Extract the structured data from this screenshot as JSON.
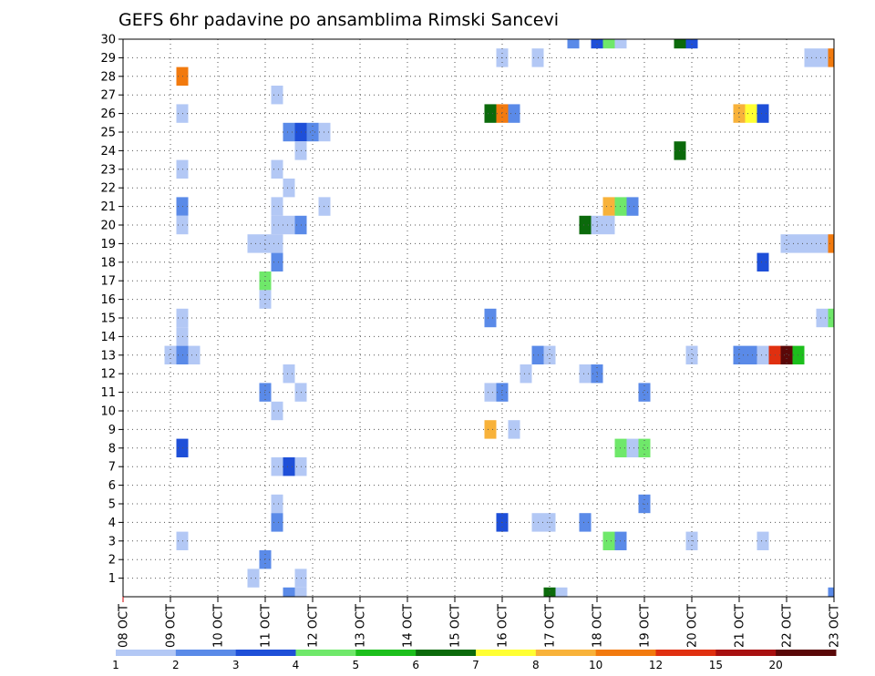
{
  "chart_data": {
    "type": "heatmap",
    "title": "GEFS 6hr padavine po ansamblima Rimski Sancevi",
    "y_ticks": [
      "1",
      "2",
      "3",
      "4",
      "5",
      "6",
      "7",
      "8",
      "9",
      "10",
      "11",
      "12",
      "13",
      "14",
      "15",
      "16",
      "17",
      "18",
      "19",
      "20",
      "21",
      "22",
      "23",
      "24",
      "25",
      "26",
      "27",
      "28",
      "29",
      "30"
    ],
    "x_ticks": [
      "08 OCT",
      "09 OCT",
      "10 OCT",
      "11 OCT",
      "12 OCT",
      "13 OCT",
      "14 OCT",
      "15 OCT",
      "16 OCT",
      "17 OCT",
      "18 OCT",
      "19 OCT",
      "20 OCT",
      "21 OCT",
      "22 OCT",
      "23 OCT"
    ],
    "xlim_days": [
      8,
      23
    ],
    "ylim": [
      0,
      30
    ],
    "cell_hours": 6,
    "grid": true,
    "legend_placement": "bottom",
    "colorbar": {
      "labels": [
        "1",
        "2",
        "3",
        "4",
        "5",
        "6",
        "7",
        "8",
        "10",
        "12",
        "15",
        "20"
      ],
      "colors": [
        "#b3c8f5",
        "#5a8ae8",
        "#1e4fd8",
        "#6fe86a",
        "#1cbf1c",
        "#0b6a0b",
        "#ffff33",
        "#f8b23a",
        "#f27a0e",
        "#e03010",
        "#a81010",
        "#5a0808"
      ]
    },
    "cells": [
      {
        "member": 30,
        "day": 17,
        "hour": 12,
        "level": 2
      },
      {
        "member": 30,
        "day": 18,
        "hour": 0,
        "level": 3
      },
      {
        "member": 30,
        "day": 18,
        "hour": 6,
        "level": 4
      },
      {
        "member": 30,
        "day": 18,
        "hour": 12,
        "level": 1
      },
      {
        "member": 30,
        "day": 19,
        "hour": 18,
        "level": 6
      },
      {
        "member": 30,
        "day": 20,
        "hour": 0,
        "level": 3
      },
      {
        "member": 29,
        "day": 16,
        "hour": 0,
        "level": 1
      },
      {
        "member": 29,
        "day": 16,
        "hour": 18,
        "level": 1
      },
      {
        "member": 29,
        "day": 22,
        "hour": 12,
        "level": 1
      },
      {
        "member": 29,
        "day": 22,
        "hour": 18,
        "level": 1
      },
      {
        "member": 29,
        "day": 23,
        "hour": 0,
        "level": 9
      },
      {
        "member": 28,
        "day": 9,
        "hour": 6,
        "level": 9
      },
      {
        "member": 27,
        "day": 11,
        "hour": 6,
        "level": 1
      },
      {
        "member": 26,
        "day": 9,
        "hour": 6,
        "level": 1
      },
      {
        "member": 26,
        "day": 15,
        "hour": 18,
        "level": 6
      },
      {
        "member": 26,
        "day": 16,
        "hour": 0,
        "level": 9
      },
      {
        "member": 26,
        "day": 16,
        "hour": 6,
        "level": 2
      },
      {
        "member": 26,
        "day": 21,
        "hour": 0,
        "level": 8
      },
      {
        "member": 26,
        "day": 21,
        "hour": 6,
        "level": 7
      },
      {
        "member": 26,
        "day": 21,
        "hour": 12,
        "level": 3
      },
      {
        "member": 25,
        "day": 11,
        "hour": 12,
        "level": 2
      },
      {
        "member": 25,
        "day": 11,
        "hour": 18,
        "level": 3
      },
      {
        "member": 25,
        "day": 12,
        "hour": 0,
        "level": 2
      },
      {
        "member": 25,
        "day": 12,
        "hour": 6,
        "level": 1
      },
      {
        "member": 24,
        "day": 11,
        "hour": 18,
        "level": 1
      },
      {
        "member": 24,
        "day": 19,
        "hour": 18,
        "level": 6
      },
      {
        "member": 23,
        "day": 9,
        "hour": 6,
        "level": 1
      },
      {
        "member": 23,
        "day": 11,
        "hour": 6,
        "level": 1
      },
      {
        "member": 22,
        "day": 11,
        "hour": 12,
        "level": 1
      },
      {
        "member": 21,
        "day": 9,
        "hour": 6,
        "level": 2
      },
      {
        "member": 21,
        "day": 11,
        "hour": 6,
        "level": 1
      },
      {
        "member": 21,
        "day": 12,
        "hour": 6,
        "level": 1
      },
      {
        "member": 21,
        "day": 18,
        "hour": 6,
        "level": 8
      },
      {
        "member": 21,
        "day": 18,
        "hour": 12,
        "level": 4
      },
      {
        "member": 21,
        "day": 18,
        "hour": 18,
        "level": 2
      },
      {
        "member": 20,
        "day": 9,
        "hour": 6,
        "level": 1
      },
      {
        "member": 20,
        "day": 11,
        "hour": 6,
        "level": 1
      },
      {
        "member": 20,
        "day": 11,
        "hour": 12,
        "level": 1
      },
      {
        "member": 20,
        "day": 11,
        "hour": 18,
        "level": 2
      },
      {
        "member": 20,
        "day": 17,
        "hour": 18,
        "level": 6
      },
      {
        "member": 20,
        "day": 18,
        "hour": 0,
        "level": 1
      },
      {
        "member": 20,
        "day": 18,
        "hour": 6,
        "level": 1
      },
      {
        "member": 19,
        "day": 10,
        "hour": 18,
        "level": 1
      },
      {
        "member": 19,
        "day": 11,
        "hour": 0,
        "level": 1
      },
      {
        "member": 19,
        "day": 11,
        "hour": 6,
        "level": 1
      },
      {
        "member": 19,
        "day": 22,
        "hour": 0,
        "level": 1
      },
      {
        "member": 19,
        "day": 22,
        "hour": 6,
        "level": 1
      },
      {
        "member": 19,
        "day": 22,
        "hour": 12,
        "level": 1
      },
      {
        "member": 19,
        "day": 22,
        "hour": 18,
        "level": 1
      },
      {
        "member": 19,
        "day": 23,
        "hour": 0,
        "level": 9
      },
      {
        "member": 18,
        "day": 11,
        "hour": 6,
        "level": 2
      },
      {
        "member": 18,
        "day": 21,
        "hour": 12,
        "level": 3
      },
      {
        "member": 17,
        "day": 11,
        "hour": 0,
        "level": 4
      },
      {
        "member": 16,
        "day": 11,
        "hour": 0,
        "level": 1
      },
      {
        "member": 15,
        "day": 9,
        "hour": 6,
        "level": 1
      },
      {
        "member": 15,
        "day": 15,
        "hour": 18,
        "level": 2
      },
      {
        "member": 15,
        "day": 22,
        "hour": 18,
        "level": 1
      },
      {
        "member": 15,
        "day": 23,
        "hour": 0,
        "level": 4
      },
      {
        "member": 14,
        "day": 9,
        "hour": 6,
        "level": 1
      },
      {
        "member": 13,
        "day": 9,
        "hour": 0,
        "level": 1
      },
      {
        "member": 13,
        "day": 9,
        "hour": 6,
        "level": 2
      },
      {
        "member": 13,
        "day": 9,
        "hour": 12,
        "level": 1
      },
      {
        "member": 13,
        "day": 16,
        "hour": 18,
        "level": 2
      },
      {
        "member": 13,
        "day": 17,
        "hour": 0,
        "level": 1
      },
      {
        "member": 13,
        "day": 20,
        "hour": 0,
        "level": 1
      },
      {
        "member": 13,
        "day": 21,
        "hour": 0,
        "level": 2
      },
      {
        "member": 13,
        "day": 21,
        "hour": 6,
        "level": 2
      },
      {
        "member": 13,
        "day": 21,
        "hour": 12,
        "level": 1
      },
      {
        "member": 13,
        "day": 21,
        "hour": 18,
        "level": 10
      },
      {
        "member": 13,
        "day": 22,
        "hour": 0,
        "level": 12
      },
      {
        "member": 13,
        "day": 22,
        "hour": 6,
        "level": 5
      },
      {
        "member": 12,
        "day": 11,
        "hour": 12,
        "level": 1
      },
      {
        "member": 12,
        "day": 16,
        "hour": 12,
        "level": 1
      },
      {
        "member": 12,
        "day": 17,
        "hour": 18,
        "level": 1
      },
      {
        "member": 12,
        "day": 18,
        "hour": 0,
        "level": 2
      },
      {
        "member": 11,
        "day": 11,
        "hour": 0,
        "level": 2
      },
      {
        "member": 11,
        "day": 11,
        "hour": 18,
        "level": 1
      },
      {
        "member": 11,
        "day": 15,
        "hour": 18,
        "level": 1
      },
      {
        "member": 11,
        "day": 16,
        "hour": 0,
        "level": 2
      },
      {
        "member": 11,
        "day": 19,
        "hour": 0,
        "level": 2
      },
      {
        "member": 10,
        "day": 11,
        "hour": 6,
        "level": 1
      },
      {
        "member": 9,
        "day": 15,
        "hour": 18,
        "level": 8
      },
      {
        "member": 9,
        "day": 16,
        "hour": 6,
        "level": 1
      },
      {
        "member": 8,
        "day": 9,
        "hour": 6,
        "level": 3
      },
      {
        "member": 8,
        "day": 18,
        "hour": 12,
        "level": 4
      },
      {
        "member": 8,
        "day": 18,
        "hour": 18,
        "level": 1
      },
      {
        "member": 8,
        "day": 19,
        "hour": 0,
        "level": 4
      },
      {
        "member": 7,
        "day": 11,
        "hour": 6,
        "level": 1
      },
      {
        "member": 7,
        "day": 11,
        "hour": 12,
        "level": 3
      },
      {
        "member": 7,
        "day": 11,
        "hour": 18,
        "level": 1
      },
      {
        "member": 5,
        "day": 11,
        "hour": 6,
        "level": 1
      },
      {
        "member": 5,
        "day": 19,
        "hour": 0,
        "level": 2
      },
      {
        "member": 4,
        "day": 11,
        "hour": 6,
        "level": 2
      },
      {
        "member": 4,
        "day": 16,
        "hour": 0,
        "level": 3
      },
      {
        "member": 4,
        "day": 16,
        "hour": 18,
        "level": 1
      },
      {
        "member": 4,
        "day": 17,
        "hour": 0,
        "level": 1
      },
      {
        "member": 4,
        "day": 17,
        "hour": 18,
        "level": 2
      },
      {
        "member": 3,
        "day": 9,
        "hour": 6,
        "level": 1
      },
      {
        "member": 3,
        "day": 18,
        "hour": 6,
        "level": 4
      },
      {
        "member": 3,
        "day": 18,
        "hour": 12,
        "level": 2
      },
      {
        "member": 3,
        "day": 20,
        "hour": 0,
        "level": 1
      },
      {
        "member": 3,
        "day": 21,
        "hour": 12,
        "level": 1
      },
      {
        "member": 2,
        "day": 11,
        "hour": 0,
        "level": 2
      },
      {
        "member": 1,
        "day": 10,
        "hour": 18,
        "level": 1
      },
      {
        "member": 1,
        "day": 11,
        "hour": 18,
        "level": 1
      },
      {
        "member": 0,
        "day": 11,
        "hour": 12,
        "level": 2
      },
      {
        "member": 0,
        "day": 11,
        "hour": 18,
        "level": 1
      },
      {
        "member": 0,
        "day": 17,
        "hour": 0,
        "level": 6
      },
      {
        "member": 0,
        "day": 17,
        "hour": 6,
        "level": 1
      },
      {
        "member": 0,
        "day": 23,
        "hour": 0,
        "level": 2
      }
    ]
  }
}
